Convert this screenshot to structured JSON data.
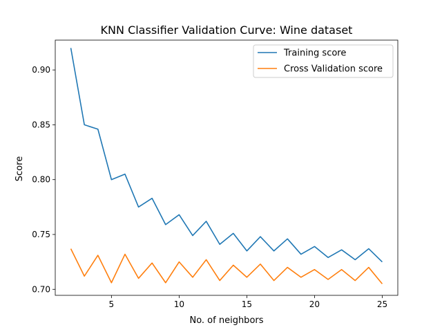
{
  "chart_data": {
    "type": "line",
    "title": "KNN Classifier Validation Curve: Wine dataset",
    "xlabel": "No. of neighbors",
    "ylabel": "Score",
    "xlim": [
      0.85,
      26.15
    ],
    "ylim": [
      0.6945,
      0.9272
    ],
    "x_ticks": [
      5,
      10,
      15,
      20,
      25
    ],
    "y_ticks": [
      0.7,
      0.75,
      0.8,
      0.85,
      0.9
    ],
    "y_tick_labels": [
      "0.70",
      "0.75",
      "0.80",
      "0.85",
      "0.90"
    ],
    "grid": false,
    "legend_position": "top-right",
    "x": [
      2,
      3,
      4,
      5,
      6,
      7,
      8,
      9,
      10,
      11,
      12,
      13,
      14,
      15,
      16,
      17,
      18,
      19,
      20,
      21,
      22,
      23,
      24,
      25
    ],
    "series": [
      {
        "name": "Training score",
        "color": "#1f77b4",
        "values": [
          0.92,
          0.85,
          0.846,
          0.8,
          0.805,
          0.775,
          0.783,
          0.759,
          0.768,
          0.749,
          0.762,
          0.741,
          0.751,
          0.735,
          0.748,
          0.735,
          0.746,
          0.732,
          0.739,
          0.729,
          0.736,
          0.727,
          0.737,
          0.725
        ]
      },
      {
        "name": "Cross Validation score",
        "color": "#ff7f0e",
        "values": [
          0.737,
          0.712,
          0.731,
          0.706,
          0.732,
          0.71,
          0.724,
          0.706,
          0.725,
          0.711,
          0.727,
          0.708,
          0.722,
          0.711,
          0.723,
          0.708,
          0.72,
          0.711,
          0.718,
          0.709,
          0.718,
          0.708,
          0.72,
          0.705
        ]
      }
    ]
  }
}
